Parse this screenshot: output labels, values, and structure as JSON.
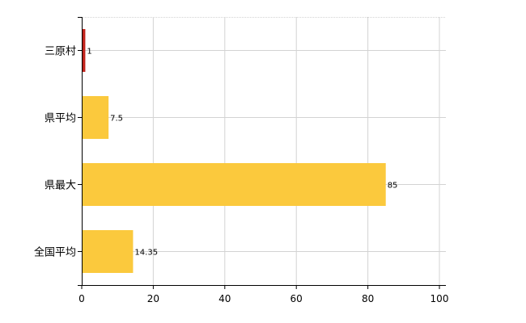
{
  "chart_data": {
    "type": "bar",
    "orientation": "horizontal",
    "categories": [
      "三原村",
      "県平均",
      "県最大",
      "全国平均"
    ],
    "values": [
      1,
      7.5,
      85,
      14.35
    ],
    "value_labels": [
      "1",
      "7.5",
      "85",
      "14.35"
    ],
    "bar_colors": [
      "#c0241c",
      "#fbc93d",
      "#fbc93d",
      "#fbc93d"
    ],
    "xlim": [
      0,
      100
    ],
    "x_ticks": [
      0,
      20,
      40,
      60,
      80,
      100
    ],
    "x_tick_labels": [
      "0",
      "20",
      "40",
      "60",
      "80",
      "100"
    ],
    "grid": true,
    "grid_color": "#d3d3d3",
    "legend": "none",
    "title": "",
    "xlabel": "",
    "ylabel": ""
  }
}
